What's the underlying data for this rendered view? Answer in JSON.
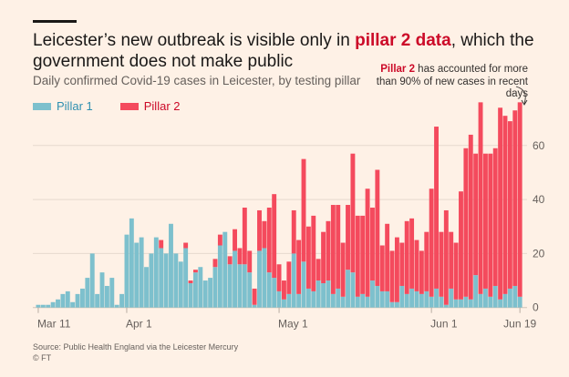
{
  "header": {
    "title_part1": "Leicester’s new outbreak is visible only in ",
    "title_highlight": "pillar 2 data",
    "title_part2": ", which the government does not make public",
    "subtitle": "Daily confirmed Covid-19 cases in Leicester, by testing pillar"
  },
  "annotation": {
    "highlight": "Pillar 2",
    "text": " has accounted for more than 90% of new cases in recent days"
  },
  "colors": {
    "pillar1": "#7dc0cd",
    "pillar2": "#f44a5d",
    "highlight": "#cc0a28",
    "background": "#fef1e6",
    "grid": "#e6d9ce"
  },
  "footer": {
    "source": "Source: Public Health England via the Leicester Mercury",
    "copyright": "© FT"
  },
  "chart_data": {
    "type": "bar",
    "stacked": true,
    "title": "Leicester’s new outbreak is visible only in pillar 2 data, which the government does not make public",
    "subtitle": "Daily confirmed Covid-19 cases in Leicester, by testing pillar",
    "xlabel": "",
    "ylabel": "",
    "ylim": [
      0,
      76
    ],
    "yticks": [
      0,
      20,
      40,
      60
    ],
    "grid": true,
    "legend_position": "top-left",
    "x_ticks": [
      {
        "label": "Mar 11",
        "index": 0
      },
      {
        "label": "Apr 1",
        "index": 18
      },
      {
        "label": "May 1",
        "index": 49
      },
      {
        "label": "Jun 1",
        "index": 80
      },
      {
        "label": "Jun 19",
        "index": 98
      }
    ],
    "series": [
      {
        "name": "Pillar 1",
        "values": [
          1,
          1,
          1,
          2,
          3,
          5,
          6,
          2,
          5,
          7,
          11,
          20,
          5,
          13,
          8,
          11,
          1,
          5,
          27,
          33,
          24,
          26,
          15,
          20,
          26,
          22,
          20,
          31,
          20,
          17,
          22,
          9,
          13,
          15,
          10,
          11,
          15,
          23,
          28,
          16,
          21,
          16,
          16,
          13,
          1,
          21,
          22,
          13,
          11,
          6,
          3,
          5,
          20,
          5,
          17,
          7,
          6,
          10,
          9,
          10,
          5,
          7,
          4,
          14,
          13,
          4,
          5,
          4,
          10,
          8,
          6,
          6,
          2,
          2,
          8,
          5,
          7,
          6,
          5,
          6,
          4,
          7,
          4,
          1,
          7,
          3,
          3,
          4,
          3,
          12,
          5,
          7,
          4,
          8,
          3,
          5,
          7,
          8,
          4
        ]
      },
      {
        "name": "Pillar 2",
        "values": [
          0,
          0,
          0,
          0,
          0,
          0,
          0,
          0,
          0,
          0,
          0,
          0,
          0,
          0,
          0,
          0,
          0,
          0,
          0,
          0,
          0,
          0,
          0,
          0,
          0,
          3,
          0,
          0,
          0,
          0,
          2,
          1,
          1,
          0,
          0,
          0,
          3,
          4,
          0,
          3,
          8,
          6,
          21,
          8,
          6,
          15,
          10,
          24,
          31,
          10,
          7,
          12,
          16,
          20,
          38,
          23,
          28,
          8,
          19,
          22,
          33,
          31,
          20,
          24,
          44,
          30,
          29,
          40,
          27,
          43,
          17,
          25,
          19,
          24,
          16,
          27,
          26,
          19,
          16,
          22,
          40,
          60,
          24,
          35,
          21,
          21,
          40,
          55,
          61,
          45,
          71,
          50,
          53,
          51,
          71,
          66,
          62,
          65,
          72
        ]
      }
    ],
    "annotation": "Pillar 2 has accounted for more than 90% of new cases in recent days"
  }
}
